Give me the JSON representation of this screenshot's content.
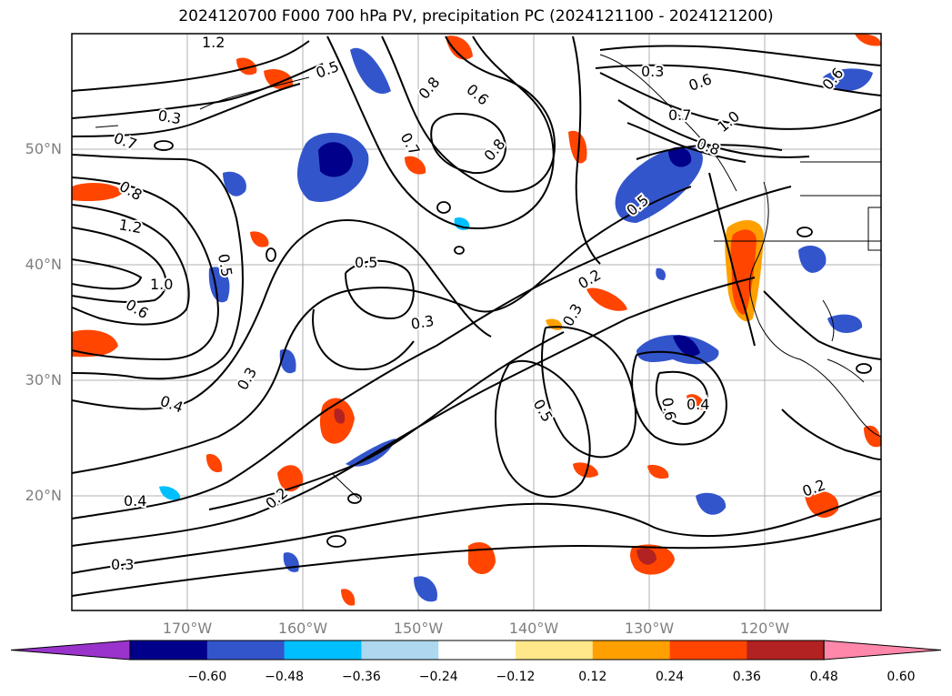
{
  "title": "2024120700 F000 700 hPa PV, precipitation PC (2024121100 - 2024121200)",
  "map": {
    "projection": "equirectangular",
    "lon_range": [
      -180,
      -110
    ],
    "lat_range": [
      10,
      60
    ],
    "gridlines": true,
    "lat_labels": [
      "50°N",
      "40°N",
      "30°N",
      "20°N"
    ],
    "lon_labels": [
      "170°W",
      "160°W",
      "150°W",
      "140°W",
      "130°W",
      "120°W"
    ],
    "contour_labels": [
      "1.2",
      "0.5",
      "0.8",
      "0.6",
      "0.3",
      "0.7",
      "0.7",
      "0.8",
      "0.7",
      "0.8",
      "1.2",
      "1.0",
      "0.6",
      "0.5",
      "1.0",
      "0.8",
      "0.3",
      "0.5",
      "0.3",
      "0.2",
      "0.3",
      "0.3",
      "0.4",
      "0.5",
      "0.6",
      "0.4",
      "0.2",
      "0.4",
      "0.2",
      "0.3",
      "0.6",
      "0.5",
      "0.6"
    ]
  },
  "colorbar": {
    "ticks": [
      "−0.60",
      "−0.48",
      "−0.36",
      "−0.24",
      "−0.12",
      "0.12",
      "0.24",
      "0.36",
      "0.48",
      "0.60"
    ],
    "colors": [
      "#9933cc",
      "#00008b",
      "#3355cc",
      "#00bfff",
      "#add8f0",
      "#ffffff",
      "#ffe88a",
      "#ffa000",
      "#ff4500",
      "#b22222",
      "#ff88aa"
    ]
  }
}
